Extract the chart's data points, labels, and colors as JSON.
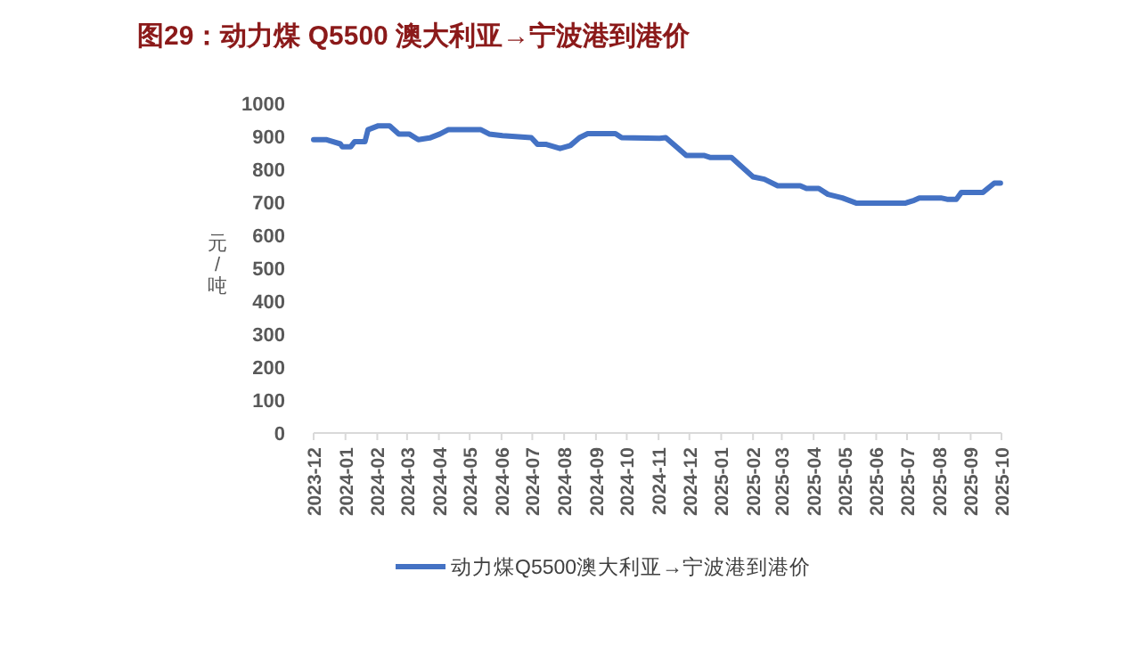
{
  "chart_data": {
    "type": "line",
    "title": "图29：动力煤 Q5500 澳大利亚→宁波港到港价",
    "ylabel": "元/吨",
    "x": [
      "2023-12-01",
      "2023-12-13",
      "2023-12-27",
      "2023-12-29",
      "2024-01-06",
      "2024-01-10",
      "2024-01-20",
      "2024-01-23",
      "2024-02-02",
      "2024-02-13",
      "2024-02-22",
      "2024-03-03",
      "2024-03-12",
      "2024-03-23",
      "2024-04-02",
      "2024-04-10",
      "2024-05-12",
      "2024-05-20",
      "2024-06-02",
      "2024-06-30",
      "2024-07-06",
      "2024-07-14",
      "2024-07-28",
      "2024-08-07",
      "2024-08-16",
      "2024-08-24",
      "2024-09-20",
      "2024-09-26",
      "2024-11-02",
      "2024-11-08",
      "2024-11-28",
      "2024-12-15",
      "2024-12-21",
      "2025-01-11",
      "2025-02-01",
      "2025-02-12",
      "2025-02-25",
      "2025-03-19",
      "2025-03-25",
      "2025-04-06",
      "2025-04-15",
      "2025-04-29",
      "2025-05-13",
      "2025-06-29",
      "2025-07-08",
      "2025-07-13",
      "2025-08-03",
      "2025-08-09",
      "2025-08-18",
      "2025-08-23",
      "2025-09-13",
      "2025-09-24",
      "2025-09-30"
    ],
    "series": [
      {
        "name": "动力煤Q5500澳大利亚→宁波港到港价",
        "color": "#4472c4",
        "values": [
          890,
          890,
          877,
          868,
          868,
          884,
          884,
          920,
          932,
          932,
          907,
          907,
          890,
          895,
          907,
          920,
          920,
          907,
          902,
          896,
          876,
          876,
          863,
          872,
          896,
          908,
          908,
          896,
          894,
          896,
          842,
          842,
          836,
          836,
          777,
          770,
          750,
          750,
          742,
          742,
          724,
          713,
          697,
          697,
          706,
          713,
          713,
          709,
          709,
          730,
          730,
          758,
          758
        ]
      }
    ],
    "xlim": [
      "2023-12-01",
      "2025-10-01"
    ],
    "xticks": [
      "2023-12",
      "2024-01",
      "2024-02",
      "2024-03",
      "2024-04",
      "2024-05",
      "2024-06",
      "2024-07",
      "2024-08",
      "2024-09",
      "2024-10",
      "2024-11",
      "2024-12",
      "2025-01",
      "2025-02",
      "2025-03",
      "2025-04",
      "2025-05",
      "2025-06",
      "2025-07",
      "2025-08",
      "2025-09",
      "2025-10"
    ],
    "ylim": [
      0,
      1000
    ],
    "yticks": [
      0,
      100,
      200,
      300,
      400,
      500,
      600,
      700,
      800,
      900,
      1000
    ],
    "legend": "bottom",
    "grid": false
  }
}
